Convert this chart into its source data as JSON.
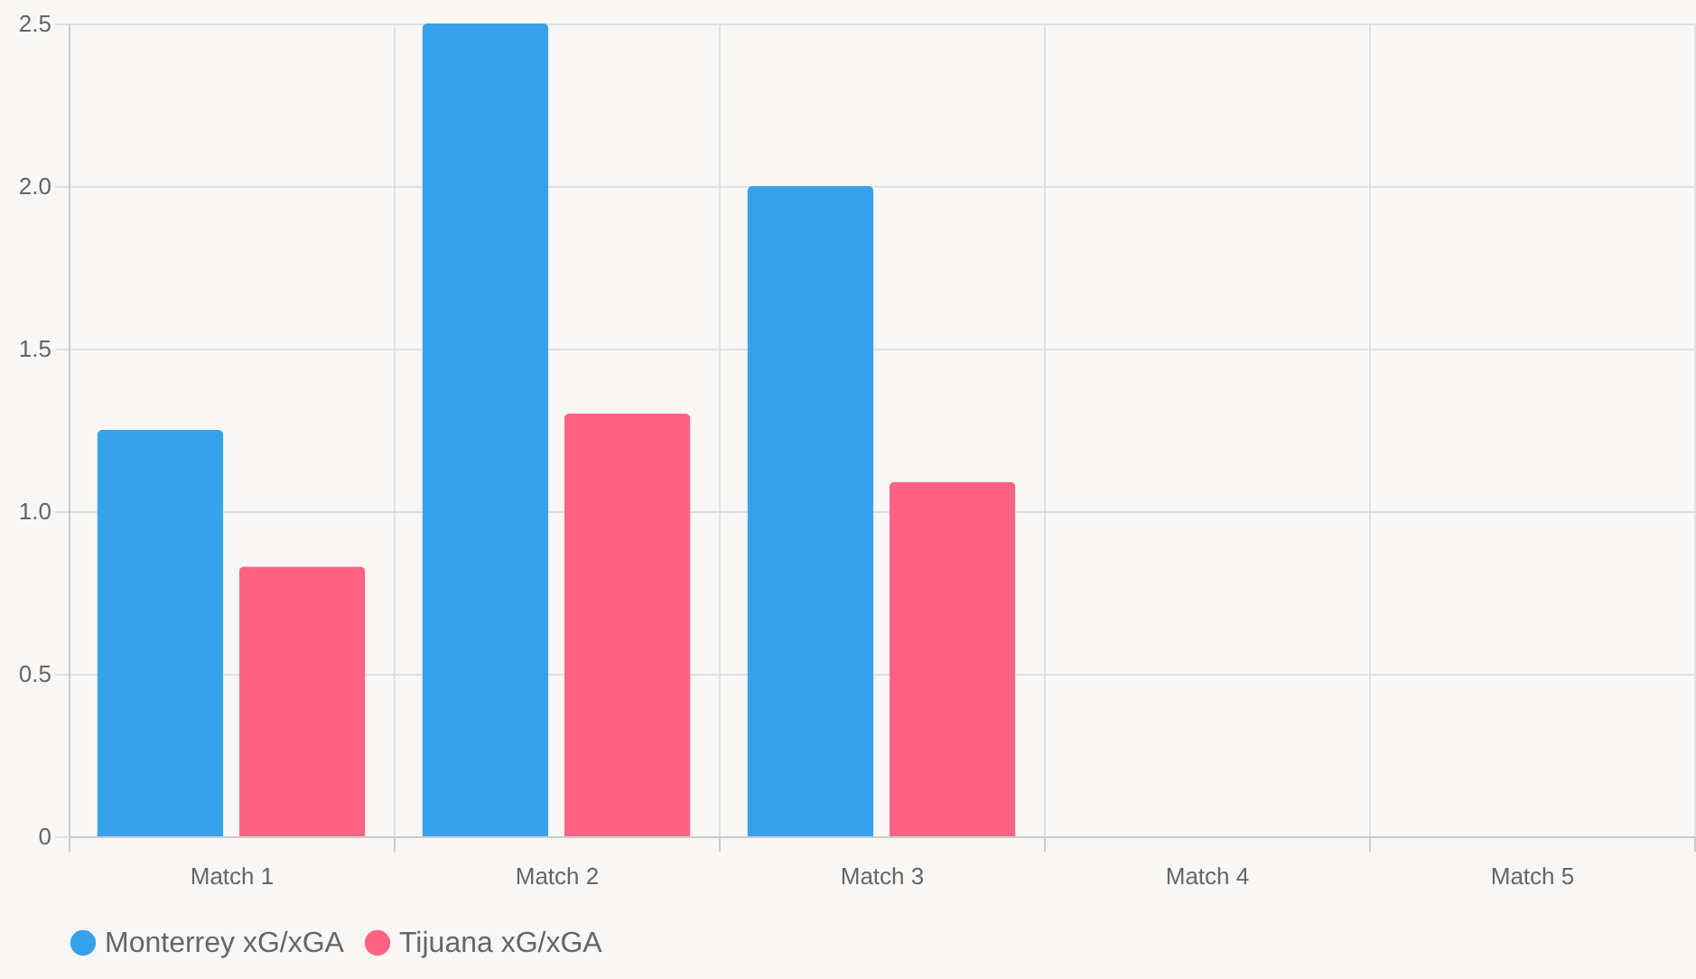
{
  "chart_data": {
    "type": "bar",
    "categories": [
      "Match 1",
      "Match 2",
      "Match 3",
      "Match 4",
      "Match 5"
    ],
    "series": [
      {
        "name": "Monterrey xG/xGA",
        "color": "#36a2eb",
        "values": [
          1.25,
          2.5,
          2.0,
          null,
          null
        ]
      },
      {
        "name": "Tijuana xG/xGA",
        "color": "#ff6384",
        "values": [
          0.83,
          1.3,
          1.09,
          null,
          null
        ]
      }
    ],
    "ylim": [
      0,
      2.5
    ],
    "yticks": [
      0,
      0.5,
      {
        "value": 1,
        "label": "1.0"
      },
      1.5,
      {
        "value": 2,
        "label": "2.0"
      },
      2.5
    ],
    "grid": true,
    "legend": "bottom"
  }
}
